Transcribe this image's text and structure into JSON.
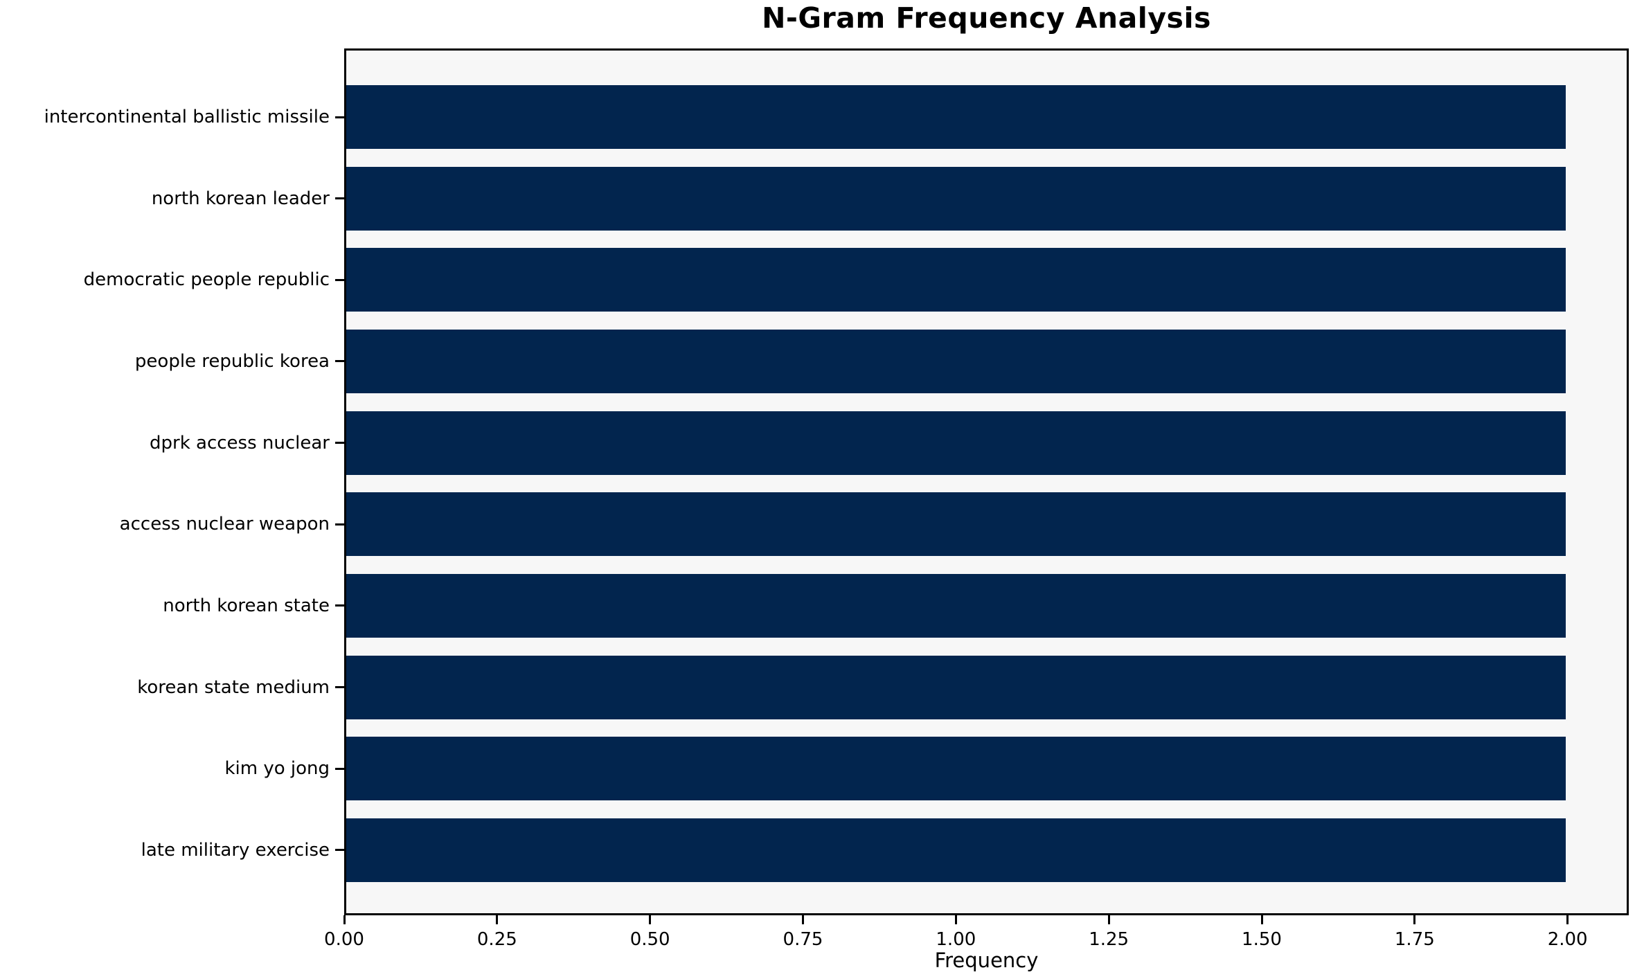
{
  "chart_data": {
    "type": "bar",
    "orientation": "horizontal",
    "title": "N-Gram Frequency Analysis",
    "xlabel": "Frequency",
    "ylabel": "",
    "categories": [
      "intercontinental ballistic missile",
      "north korean leader",
      "democratic people republic",
      "people republic korea",
      "dprk access nuclear",
      "access nuclear weapon",
      "north korean state",
      "korean state medium",
      "kim yo jong",
      "late military exercise"
    ],
    "values": [
      2,
      2,
      2,
      2,
      2,
      2,
      2,
      2,
      2,
      2
    ],
    "xlim": [
      0,
      2.1
    ],
    "xticks": [
      "0.00",
      "0.25",
      "0.50",
      "0.75",
      "1.00",
      "1.25",
      "1.50",
      "1.75",
      "2.00"
    ],
    "grid": false,
    "legend": null,
    "bar_color": "#02254e",
    "plot_bg": "#f7f7f7",
    "figure_bg": "#ffffff",
    "spine_color": "#000000"
  }
}
